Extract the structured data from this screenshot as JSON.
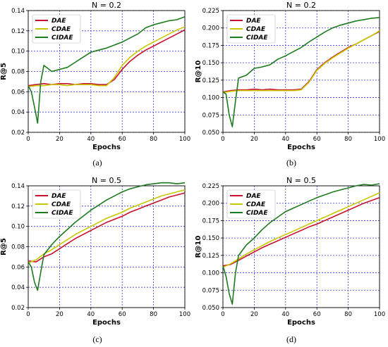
{
  "chart_data": [
    {
      "type": "line",
      "title": "N = 0.2",
      "xlabel": "Epochs",
      "ylabel": "R@5",
      "caption": "(a)",
      "xlim": [
        0,
        100
      ],
      "ylim": [
        0.02,
        0.14
      ],
      "xticks": [
        "0",
        "20",
        "40",
        "60",
        "80",
        "100"
      ],
      "yticks": [
        "0.02",
        "0.04",
        "0.06",
        "0.08",
        "0.10",
        "0.12",
        "0.14"
      ],
      "grid": true,
      "legend": "top-left",
      "series": [
        {
          "name": "DAE",
          "color": "#c8102e",
          "x": [
            0,
            5,
            10,
            15,
            20,
            25,
            30,
            35,
            40,
            45,
            50,
            55,
            60,
            65,
            70,
            75,
            80,
            85,
            90,
            95,
            100
          ],
          "y": [
            0.066,
            0.067,
            0.068,
            0.067,
            0.068,
            0.068,
            0.067,
            0.068,
            0.068,
            0.067,
            0.067,
            0.072,
            0.082,
            0.09,
            0.096,
            0.101,
            0.105,
            0.109,
            0.113,
            0.117,
            0.121
          ]
        },
        {
          "name": "CDAE",
          "color": "#c8c800",
          "x": [
            0,
            5,
            10,
            15,
            20,
            25,
            30,
            35,
            40,
            45,
            50,
            55,
            60,
            65,
            70,
            75,
            80,
            85,
            90,
            95,
            100
          ],
          "y": [
            0.065,
            0.066,
            0.066,
            0.067,
            0.067,
            0.066,
            0.067,
            0.067,
            0.067,
            0.066,
            0.066,
            0.074,
            0.086,
            0.094,
            0.1,
            0.105,
            0.109,
            0.113,
            0.117,
            0.121,
            0.124
          ]
        },
        {
          "name": "CIDAE",
          "color": "#1e7a1e",
          "x": [
            0,
            2,
            4,
            6,
            8,
            10,
            15,
            20,
            25,
            30,
            35,
            40,
            45,
            50,
            55,
            60,
            65,
            70,
            75,
            80,
            85,
            90,
            95,
            100
          ],
          "y": [
            0.066,
            0.06,
            0.045,
            0.029,
            0.07,
            0.086,
            0.08,
            0.082,
            0.084,
            0.089,
            0.094,
            0.099,
            0.101,
            0.103,
            0.106,
            0.109,
            0.113,
            0.117,
            0.123,
            0.126,
            0.128,
            0.13,
            0.131,
            0.134
          ]
        }
      ]
    },
    {
      "type": "line",
      "title": "N = 0.2",
      "xlabel": "Epochs",
      "ylabel": "R@10",
      "caption": "(b)",
      "xlim": [
        0,
        100
      ],
      "ylim": [
        0.05,
        0.225
      ],
      "xticks": [
        "0",
        "20",
        "40",
        "60",
        "80",
        "100"
      ],
      "yticks": [
        "0.050",
        "0.075",
        "0.100",
        "0.125",
        "0.150",
        "0.175",
        "0.200",
        "0.225"
      ],
      "grid": true,
      "legend": "top-left",
      "series": [
        {
          "name": "DAE",
          "color": "#c8102e",
          "x": [
            0,
            5,
            10,
            15,
            20,
            25,
            30,
            35,
            40,
            45,
            50,
            55,
            60,
            65,
            70,
            75,
            80,
            85,
            90,
            95,
            100
          ],
          "y": [
            0.108,
            0.11,
            0.111,
            0.111,
            0.112,
            0.111,
            0.112,
            0.111,
            0.111,
            0.111,
            0.112,
            0.123,
            0.14,
            0.15,
            0.158,
            0.165,
            0.172,
            0.177,
            0.183,
            0.189,
            0.195
          ]
        },
        {
          "name": "CDAE",
          "color": "#c8c800",
          "x": [
            0,
            5,
            10,
            15,
            20,
            25,
            30,
            35,
            40,
            45,
            50,
            55,
            60,
            65,
            70,
            75,
            80,
            85,
            90,
            95,
            100
          ],
          "y": [
            0.107,
            0.109,
            0.11,
            0.11,
            0.11,
            0.11,
            0.11,
            0.11,
            0.11,
            0.11,
            0.111,
            0.122,
            0.139,
            0.149,
            0.157,
            0.164,
            0.171,
            0.177,
            0.183,
            0.189,
            0.196
          ]
        },
        {
          "name": "CIDAE",
          "color": "#1e7a1e",
          "x": [
            0,
            2,
            4,
            6,
            8,
            10,
            15,
            20,
            25,
            30,
            35,
            40,
            45,
            50,
            55,
            60,
            65,
            70,
            75,
            80,
            85,
            90,
            95,
            100
          ],
          "y": [
            0.108,
            0.105,
            0.075,
            0.058,
            0.095,
            0.128,
            0.132,
            0.142,
            0.144,
            0.147,
            0.155,
            0.16,
            0.166,
            0.172,
            0.18,
            0.187,
            0.194,
            0.2,
            0.204,
            0.207,
            0.21,
            0.212,
            0.214,
            0.215
          ]
        }
      ]
    },
    {
      "type": "line",
      "title": "N = 0.5",
      "xlabel": "Epochs",
      "ylabel": "R@5",
      "caption": "(c)",
      "xlim": [
        0,
        100
      ],
      "ylim": [
        0.02,
        0.14
      ],
      "xticks": [
        "0",
        "20",
        "40",
        "60",
        "80",
        "100"
      ],
      "yticks": [
        "0.02",
        "0.04",
        "0.06",
        "0.08",
        "0.10",
        "0.12",
        "0.14"
      ],
      "grid": true,
      "legend": "top-left",
      "series": [
        {
          "name": "DAE",
          "color": "#c8102e",
          "x": [
            0,
            5,
            10,
            15,
            20,
            25,
            30,
            35,
            40,
            45,
            50,
            55,
            60,
            65,
            70,
            75,
            80,
            85,
            90,
            95,
            100
          ],
          "y": [
            0.066,
            0.065,
            0.07,
            0.073,
            0.078,
            0.083,
            0.088,
            0.092,
            0.096,
            0.1,
            0.104,
            0.107,
            0.11,
            0.114,
            0.117,
            0.12,
            0.123,
            0.126,
            0.129,
            0.131,
            0.133
          ]
        },
        {
          "name": "CDAE",
          "color": "#c8c800",
          "x": [
            0,
            5,
            10,
            15,
            20,
            25,
            30,
            35,
            40,
            45,
            50,
            55,
            60,
            65,
            70,
            75,
            80,
            85,
            90,
            95,
            100
          ],
          "y": [
            0.064,
            0.067,
            0.073,
            0.077,
            0.082,
            0.087,
            0.092,
            0.096,
            0.1,
            0.104,
            0.108,
            0.111,
            0.114,
            0.118,
            0.121,
            0.124,
            0.127,
            0.13,
            0.132,
            0.134,
            0.136
          ]
        },
        {
          "name": "CIDAE",
          "color": "#1e7a1e",
          "x": [
            0,
            2,
            4,
            6,
            8,
            10,
            15,
            20,
            25,
            30,
            35,
            40,
            45,
            50,
            55,
            60,
            65,
            70,
            75,
            80,
            85,
            90,
            95,
            100
          ],
          "y": [
            0.065,
            0.06,
            0.045,
            0.037,
            0.055,
            0.072,
            0.082,
            0.09,
            0.097,
            0.104,
            0.11,
            0.116,
            0.121,
            0.126,
            0.13,
            0.134,
            0.137,
            0.139,
            0.141,
            0.142,
            0.143,
            0.143,
            0.142,
            0.143
          ]
        }
      ]
    },
    {
      "type": "line",
      "title": "N = 0.5",
      "xlabel": "Epochs",
      "ylabel": "R@10",
      "caption": "(d)",
      "xlim": [
        0,
        100
      ],
      "ylim": [
        0.05,
        0.225
      ],
      "xticks": [
        "0",
        "20",
        "40",
        "60",
        "80",
        "100"
      ],
      "yticks": [
        "0.050",
        "0.075",
        "0.100",
        "0.125",
        "0.150",
        "0.175",
        "0.200",
        "0.225"
      ],
      "grid": true,
      "legend": "top-left",
      "series": [
        {
          "name": "DAE",
          "color": "#c8102e",
          "x": [
            0,
            5,
            10,
            15,
            20,
            25,
            30,
            35,
            40,
            45,
            50,
            55,
            60,
            65,
            70,
            75,
            80,
            85,
            90,
            95,
            100
          ],
          "y": [
            0.11,
            0.112,
            0.118,
            0.124,
            0.13,
            0.136,
            0.141,
            0.146,
            0.151,
            0.156,
            0.161,
            0.166,
            0.17,
            0.175,
            0.18,
            0.185,
            0.19,
            0.195,
            0.2,
            0.204,
            0.208
          ]
        },
        {
          "name": "CDAE",
          "color": "#c8c800",
          "x": [
            0,
            5,
            10,
            15,
            20,
            25,
            30,
            35,
            40,
            45,
            50,
            55,
            60,
            65,
            70,
            75,
            80,
            85,
            90,
            95,
            100
          ],
          "y": [
            0.108,
            0.113,
            0.12,
            0.127,
            0.133,
            0.139,
            0.145,
            0.15,
            0.155,
            0.16,
            0.165,
            0.17,
            0.175,
            0.18,
            0.185,
            0.19,
            0.195,
            0.2,
            0.205,
            0.21,
            0.215
          ]
        },
        {
          "name": "CIDAE",
          "color": "#1e7a1e",
          "x": [
            0,
            2,
            4,
            6,
            8,
            10,
            15,
            20,
            25,
            30,
            35,
            40,
            45,
            50,
            55,
            60,
            65,
            70,
            75,
            80,
            85,
            90,
            95,
            100
          ],
          "y": [
            0.11,
            0.095,
            0.07,
            0.055,
            0.1,
            0.125,
            0.14,
            0.15,
            0.162,
            0.172,
            0.18,
            0.188,
            0.193,
            0.198,
            0.203,
            0.208,
            0.212,
            0.216,
            0.219,
            0.222,
            0.225,
            0.227,
            0.226,
            0.228
          ]
        }
      ]
    }
  ]
}
